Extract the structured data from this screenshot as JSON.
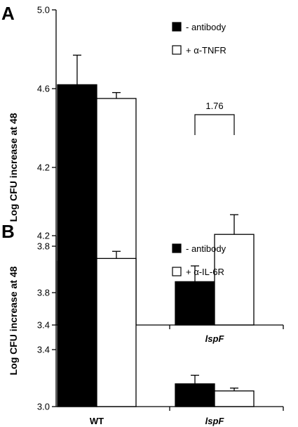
{
  "chart_data": [
    {
      "type": "bar",
      "panel": "A",
      "ylabel": "Log CFU increase at 48",
      "categories": [
        "WT",
        "lspF"
      ],
      "category_italic": [
        false,
        true
      ],
      "ylim": [
        3.4,
        5.0
      ],
      "yticks": [
        "3.4",
        "3.8",
        "4.2",
        "4.6",
        "5.0"
      ],
      "legend_position": "top-right",
      "series": [
        {
          "name": "- antibody",
          "color": "#000000",
          "values": [
            4.62,
            3.62
          ],
          "errors": [
            0.15,
            0.08
          ]
        },
        {
          "name": "+ α-TNFR",
          "color": "#ffffff",
          "values": [
            4.55,
            3.86
          ],
          "errors": [
            0.03,
            0.1
          ]
        }
      ],
      "annotation": {
        "text": "1.76",
        "category_index": 1
      }
    },
    {
      "type": "bar",
      "panel": "B",
      "ylabel": "Log CFU increase at 48",
      "categories": [
        "WT",
        "lspF"
      ],
      "category_italic": [
        false,
        true
      ],
      "ylim": [
        3.0,
        4.2
      ],
      "yticks": [
        "3.0",
        "3.4",
        "3.8",
        "4.2"
      ],
      "legend_position": "top-right",
      "series": [
        {
          "name": "- antibody",
          "color": "#000000",
          "values": [
            4.02,
            3.16
          ],
          "errors": [
            0.11,
            0.06
          ]
        },
        {
          "name": "+ α-IL-6R",
          "color": "#ffffff",
          "values": [
            4.04,
            3.11
          ],
          "errors": [
            0.05,
            0.02
          ]
        }
      ]
    }
  ]
}
